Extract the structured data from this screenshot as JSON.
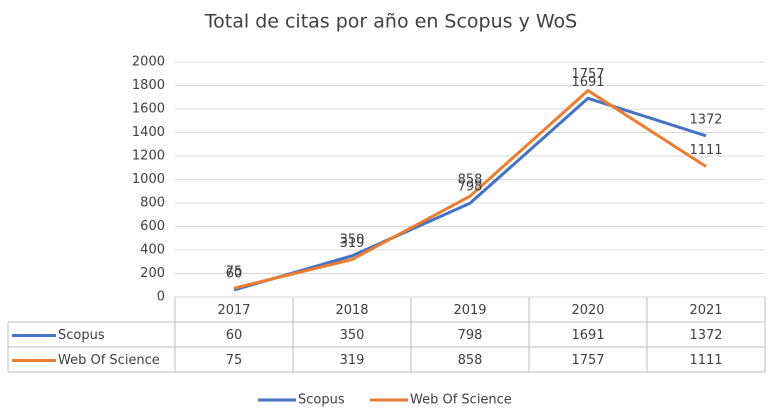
{
  "chart_data": {
    "type": "line",
    "title": "Total de citas por año en Scopus y WoS",
    "categories": [
      "2017",
      "2018",
      "2019",
      "2020",
      "2021"
    ],
    "series": [
      {
        "name": "Scopus",
        "color": "#4472c4",
        "values": [
          60,
          350,
          798,
          1691,
          1372
        ]
      },
      {
        "name": "Web Of Science",
        "color": "#ed7d31",
        "values": [
          75,
          319,
          858,
          1757,
          1111
        ]
      }
    ],
    "ylim": [
      0,
      2000
    ],
    "yticks": [
      0,
      200,
      400,
      600,
      800,
      1000,
      1200,
      1400,
      1600,
      1800,
      2000
    ],
    "grid": true,
    "legend": "bottom"
  }
}
